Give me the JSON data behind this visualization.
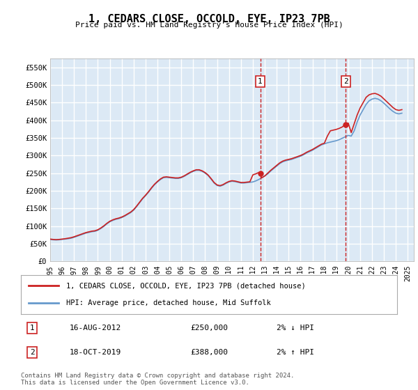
{
  "title": "1, CEDARS CLOSE, OCCOLD, EYE, IP23 7PB",
  "subtitle": "Price paid vs. HM Land Registry's House Price Index (HPI)",
  "background_color": "#dce9f5",
  "plot_background": "#dce9f5",
  "grid_color": "#ffffff",
  "ylabel_ticks": [
    "£0",
    "£50K",
    "£100K",
    "£150K",
    "£200K",
    "£250K",
    "£300K",
    "£350K",
    "£400K",
    "£450K",
    "£500K",
    "£550K"
  ],
  "ytick_values": [
    0,
    50000,
    100000,
    150000,
    200000,
    250000,
    300000,
    350000,
    400000,
    450000,
    500000,
    550000
  ],
  "ylim": [
    0,
    575000
  ],
  "xlim_start": 1995.0,
  "xlim_end": 2025.5,
  "transaction1": {
    "date_num": 2012.62,
    "price": 250000,
    "label": "1",
    "date_str": "16-AUG-2012",
    "price_str": "£250,000",
    "note": "2% ↓ HPI"
  },
  "transaction2": {
    "date_num": 2019.8,
    "price": 388000,
    "label": "2",
    "date_str": "18-OCT-2019",
    "price_str": "£388,000",
    "note": "2% ↑ HPI"
  },
  "legend_line1": "1, CEDARS CLOSE, OCCOLD, EYE, IP23 7PB (detached house)",
  "legend_line2": "HPI: Average price, detached house, Mid Suffolk",
  "footer": "Contains HM Land Registry data © Crown copyright and database right 2024.\nThis data is licensed under the Open Government Licence v3.0.",
  "hpi_data": {
    "years": [
      1995.0,
      1995.25,
      1995.5,
      1995.75,
      1996.0,
      1996.25,
      1996.5,
      1996.75,
      1997.0,
      1997.25,
      1997.5,
      1997.75,
      1998.0,
      1998.25,
      1998.5,
      1998.75,
      1999.0,
      1999.25,
      1999.5,
      1999.75,
      2000.0,
      2000.25,
      2000.5,
      2000.75,
      2001.0,
      2001.25,
      2001.5,
      2001.75,
      2002.0,
      2002.25,
      2002.5,
      2002.75,
      2003.0,
      2003.25,
      2003.5,
      2003.75,
      2004.0,
      2004.25,
      2004.5,
      2004.75,
      2005.0,
      2005.25,
      2005.5,
      2005.75,
      2006.0,
      2006.25,
      2006.5,
      2006.75,
      2007.0,
      2007.25,
      2007.5,
      2007.75,
      2008.0,
      2008.25,
      2008.5,
      2008.75,
      2009.0,
      2009.25,
      2009.5,
      2009.75,
      2010.0,
      2010.25,
      2010.5,
      2010.75,
      2011.0,
      2011.25,
      2011.5,
      2011.75,
      2012.0,
      2012.25,
      2012.5,
      2012.75,
      2013.0,
      2013.25,
      2013.5,
      2013.75,
      2014.0,
      2014.25,
      2014.5,
      2014.75,
      2015.0,
      2015.25,
      2015.5,
      2015.75,
      2016.0,
      2016.25,
      2016.5,
      2016.75,
      2017.0,
      2017.25,
      2017.5,
      2017.75,
      2018.0,
      2018.25,
      2018.5,
      2018.75,
      2019.0,
      2019.25,
      2019.5,
      2019.75,
      2020.0,
      2020.25,
      2020.5,
      2020.75,
      2021.0,
      2021.25,
      2021.5,
      2021.75,
      2022.0,
      2022.25,
      2022.5,
      2022.75,
      2023.0,
      2023.25,
      2023.5,
      2023.75,
      2024.0,
      2024.25,
      2024.5
    ],
    "values": [
      62000,
      61000,
      60500,
      61000,
      62000,
      63000,
      64000,
      65500,
      68000,
      71000,
      74000,
      77000,
      80000,
      82000,
      84000,
      85000,
      88000,
      93000,
      99000,
      106000,
      112000,
      116000,
      119000,
      121000,
      124000,
      128000,
      133000,
      138000,
      145000,
      155000,
      166000,
      177000,
      186000,
      196000,
      207000,
      217000,
      225000,
      232000,
      237000,
      238000,
      237000,
      236000,
      235000,
      235000,
      237000,
      241000,
      246000,
      251000,
      255000,
      258000,
      258000,
      255000,
      250000,
      243000,
      233000,
      222000,
      215000,
      213000,
      216000,
      221000,
      225000,
      227000,
      226000,
      224000,
      222000,
      222000,
      223000,
      224000,
      225000,
      228000,
      232000,
      237000,
      242000,
      248000,
      256000,
      263000,
      270000,
      277000,
      282000,
      285000,
      287000,
      289000,
      292000,
      295000,
      298000,
      302000,
      307000,
      311000,
      315000,
      320000,
      325000,
      330000,
      333000,
      336000,
      338000,
      340000,
      342000,
      345000,
      349000,
      353000,
      357000,
      355000,
      370000,
      395000,
      415000,
      430000,
      445000,
      455000,
      460000,
      462000,
      460000,
      455000,
      448000,
      440000,
      432000,
      425000,
      420000,
      418000,
      420000
    ]
  },
  "property_data": {
    "years": [
      1995.0,
      1995.25,
      1995.5,
      1995.75,
      1996.0,
      1996.25,
      1996.5,
      1996.75,
      1997.0,
      1997.25,
      1997.5,
      1997.75,
      1998.0,
      1998.25,
      1998.5,
      1998.75,
      1999.0,
      1999.25,
      1999.5,
      1999.75,
      2000.0,
      2000.25,
      2000.5,
      2000.75,
      2001.0,
      2001.25,
      2001.5,
      2001.75,
      2002.0,
      2002.25,
      2002.5,
      2002.75,
      2003.0,
      2003.25,
      2003.5,
      2003.75,
      2004.0,
      2004.25,
      2004.5,
      2004.75,
      2005.0,
      2005.25,
      2005.5,
      2005.75,
      2006.0,
      2006.25,
      2006.5,
      2006.75,
      2007.0,
      2007.25,
      2007.5,
      2007.75,
      2008.0,
      2008.25,
      2008.5,
      2008.75,
      2009.0,
      2009.25,
      2009.5,
      2009.75,
      2010.0,
      2010.25,
      2010.5,
      2010.75,
      2011.0,
      2011.25,
      2011.5,
      2011.75,
      2012.0,
      2012.25,
      2012.5,
      2012.75,
      2013.0,
      2013.25,
      2013.5,
      2013.75,
      2014.0,
      2014.25,
      2014.5,
      2014.75,
      2015.0,
      2015.25,
      2015.5,
      2015.75,
      2016.0,
      2016.25,
      2016.5,
      2016.75,
      2017.0,
      2017.25,
      2017.5,
      2017.75,
      2018.0,
      2018.25,
      2018.5,
      2018.75,
      2019.0,
      2019.25,
      2019.5,
      2019.75,
      2020.0,
      2020.25,
      2020.5,
      2020.75,
      2021.0,
      2021.25,
      2021.5,
      2021.75,
      2022.0,
      2022.25,
      2022.5,
      2022.75,
      2023.0,
      2023.25,
      2023.5,
      2023.75,
      2024.0,
      2024.25,
      2024.5
    ],
    "values": [
      63000,
      62000,
      61500,
      62000,
      63000,
      64000,
      65500,
      67000,
      69500,
      72500,
      75500,
      78500,
      81500,
      83500,
      85500,
      86500,
      89500,
      94500,
      100500,
      107500,
      113500,
      117500,
      120500,
      122500,
      125500,
      129500,
      134500,
      139500,
      146500,
      156500,
      167500,
      178500,
      187500,
      197500,
      208500,
      218500,
      226500,
      233500,
      238500,
      239500,
      238500,
      237500,
      236500,
      236500,
      238500,
      242500,
      247500,
      252500,
      256500,
      259500,
      259500,
      256500,
      251500,
      244500,
      234500,
      223500,
      216500,
      214500,
      217500,
      222500,
      226500,
      228500,
      227500,
      225500,
      223500,
      223500,
      224500,
      225500,
      245000,
      248000,
      252000,
      237000,
      242000,
      250000,
      258000,
      265000,
      272000,
      279000,
      284000,
      287000,
      289000,
      291000,
      294000,
      297000,
      300000,
      304000,
      309000,
      313000,
      317000,
      322000,
      327000,
      332000,
      335000,
      355000,
      370000,
      372000,
      374000,
      377000,
      381000,
      388000,
      392000,
      365000,
      390000,
      415000,
      435000,
      450000,
      465000,
      472000,
      475000,
      476000,
      473000,
      468000,
      460000,
      452000,
      444000,
      436000,
      430000,
      428000,
      430000
    ]
  },
  "xtick_years": [
    1995,
    1996,
    1997,
    1998,
    1999,
    2000,
    2001,
    2002,
    2003,
    2004,
    2005,
    2006,
    2007,
    2008,
    2009,
    2010,
    2011,
    2012,
    2013,
    2014,
    2015,
    2016,
    2017,
    2018,
    2019,
    2020,
    2021,
    2022,
    2023,
    2024,
    2025
  ]
}
